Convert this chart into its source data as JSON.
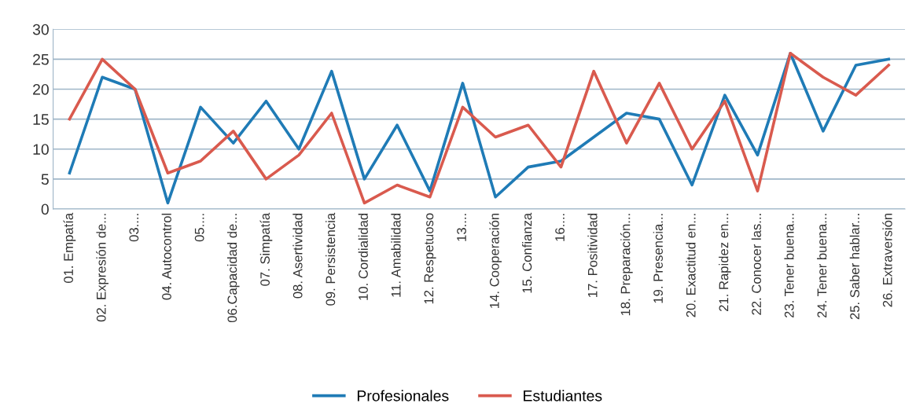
{
  "chart_data": {
    "type": "line",
    "categories": [
      "01. Empatía",
      "02. Expresión de...",
      "03....",
      "04. Autocontrol",
      "05....",
      "06.Capacidad de...",
      "07. Simpatía",
      "08. Asertividad",
      "09. Persistencia",
      "10. Cordialidad",
      "11. Amabilidad",
      "12. Respetuoso",
      "13....",
      "14. Cooperación",
      "15. Confianza",
      "16....",
      "17. Positividad",
      "18. Preparación...",
      "19. Presencia...",
      "20. Exactitud en...",
      "21. Rapidez en...",
      "22. Conocer las...",
      "23. Tener buena...",
      "24. Tener buena...",
      "25. Saber hablar...",
      "26. Extraversión"
    ],
    "series": [
      {
        "name": "Profesionales",
        "color": "#1f7bb6",
        "values": [
          6,
          22,
          20,
          1,
          17,
          11,
          18,
          10,
          23,
          5,
          14,
          3,
          21,
          2,
          7,
          8,
          12,
          16,
          15,
          4,
          19,
          9,
          26,
          13,
          24,
          25
        ]
      },
      {
        "name": "Estudiantes",
        "color": "#d95a4e",
        "values": [
          15,
          25,
          20,
          6,
          8,
          13,
          5,
          9,
          16,
          1,
          4,
          2,
          17,
          12,
          14,
          7,
          23,
          11,
          21,
          10,
          18,
          3,
          26,
          22,
          19,
          24
        ]
      }
    ],
    "ylim": [
      0,
      30
    ],
    "yticks": [
      0,
      5,
      10,
      15,
      20,
      25,
      30
    ],
    "grid": "y",
    "legend": "bottom",
    "marker": "none",
    "line_style": "solid"
  }
}
